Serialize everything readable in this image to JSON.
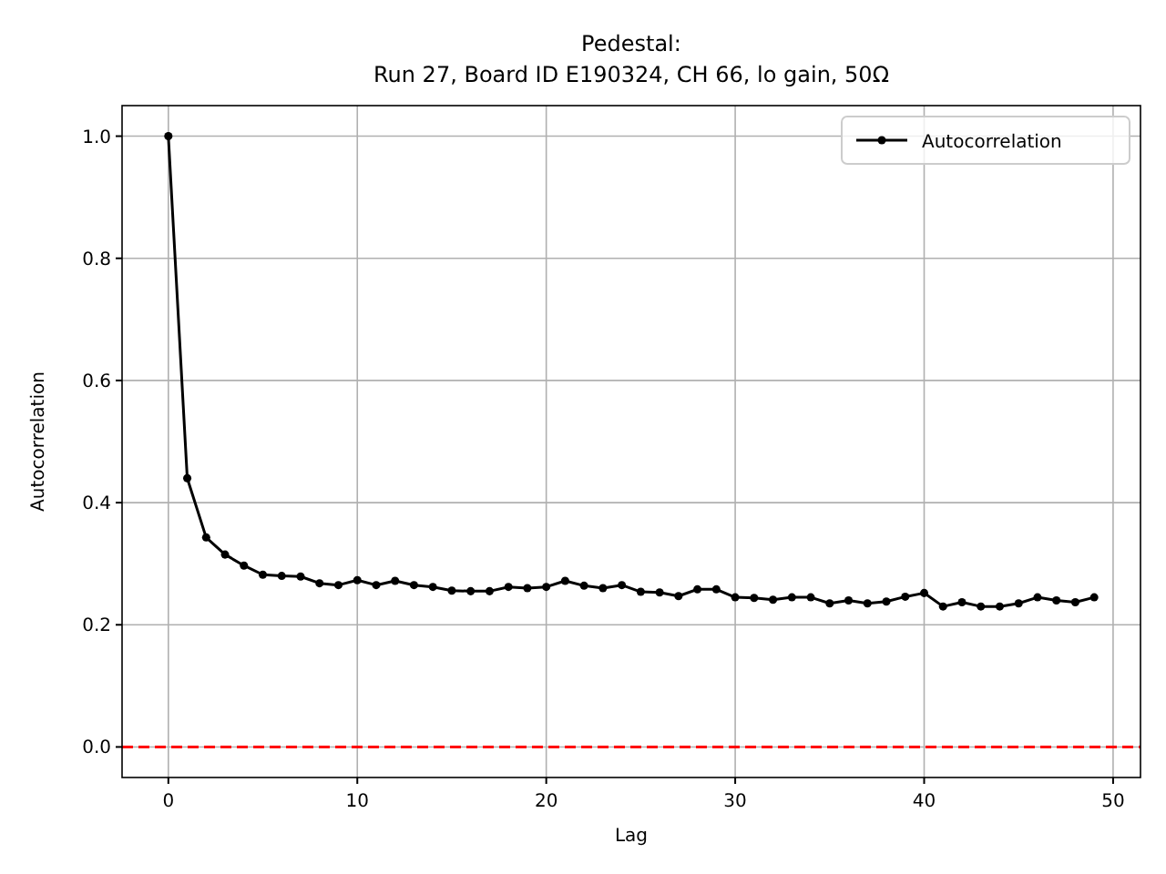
{
  "chart_data": {
    "type": "line",
    "title": "Pedestal:\nRun 27, Board ID E190324, CH 66, lo gain, 50Ω",
    "xlabel": "Lag",
    "ylabel": "Autocorrelation",
    "x": [
      0,
      1,
      2,
      3,
      4,
      5,
      6,
      7,
      8,
      9,
      10,
      11,
      12,
      13,
      14,
      15,
      16,
      17,
      18,
      19,
      20,
      21,
      22,
      23,
      24,
      25,
      26,
      27,
      28,
      29,
      30,
      31,
      32,
      33,
      34,
      35,
      36,
      37,
      38,
      39,
      40,
      41,
      42,
      43,
      44,
      45,
      46,
      47,
      48,
      49
    ],
    "series": [
      {
        "name": "Autocorrelation",
        "color": "#000000",
        "values": [
          1.0,
          0.44,
          0.343,
          0.315,
          0.297,
          0.282,
          0.28,
          0.279,
          0.268,
          0.265,
          0.273,
          0.265,
          0.272,
          0.265,
          0.262,
          0.256,
          0.255,
          0.255,
          0.262,
          0.26,
          0.262,
          0.272,
          0.264,
          0.26,
          0.265,
          0.254,
          0.253,
          0.247,
          0.258,
          0.258,
          0.245,
          0.244,
          0.241,
          0.245,
          0.245,
          0.235,
          0.24,
          0.235,
          0.238,
          0.246,
          0.252,
          0.23,
          0.237,
          0.23,
          0.23,
          0.235,
          0.245,
          0.24,
          0.237,
          0.245
        ]
      }
    ],
    "xlim": [
      -2.45,
      51.45
    ],
    "ylim": [
      -0.05,
      1.05
    ],
    "xticks": [
      0,
      10,
      20,
      30,
      40,
      50
    ],
    "yticks": [
      {
        "value": 0,
        "label": "0.0"
      },
      {
        "value": 0.2,
        "label": "0.2"
      },
      {
        "value": 0.4,
        "label": "0.4"
      },
      {
        "value": 0.6,
        "label": "0.6"
      },
      {
        "value": 0.8,
        "label": "0.8"
      },
      {
        "value": 1,
        "label": "1.0"
      }
    ],
    "ref_lines": [
      {
        "axis": "y",
        "value": 0,
        "color": "#ff0000",
        "line_style": "dashed"
      }
    ],
    "grid": true,
    "legend": "top right",
    "marker": "circle",
    "line_style": "solid"
  }
}
